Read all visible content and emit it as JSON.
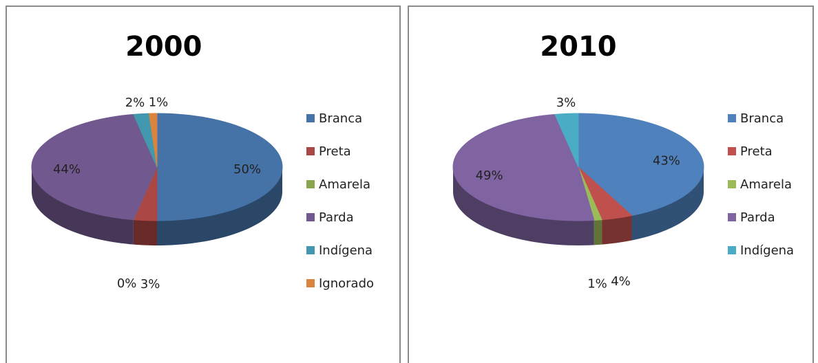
{
  "chart_data": [
    {
      "type": "pie",
      "title": "2000",
      "categories": [
        "Branca",
        "Preta",
        "Amarela",
        "Parda",
        "Indígena",
        "Ignorado"
      ],
      "values": [
        50,
        3,
        0,
        44,
        2,
        1
      ],
      "value_labels": [
        "50%",
        "3%",
        "0%",
        "44%",
        "2%",
        "1%"
      ],
      "colors": [
        "#4572a7",
        "#aa4643",
        "#89a54e",
        "#71588f",
        "#4198af",
        "#db843d"
      ],
      "legend": "right"
    },
    {
      "type": "pie",
      "title": "2010",
      "categories": [
        "Branca",
        "Preta",
        "Amarela",
        "Parda",
        "Indígena"
      ],
      "values": [
        43,
        4,
        1,
        49,
        3
      ],
      "value_labels": [
        "43%",
        "4%",
        "1%",
        "49%",
        "3%"
      ],
      "colors": [
        "#4f81bd",
        "#c0504d",
        "#9bbb59",
        "#8064a2",
        "#4bacc6"
      ],
      "legend": "right"
    }
  ]
}
